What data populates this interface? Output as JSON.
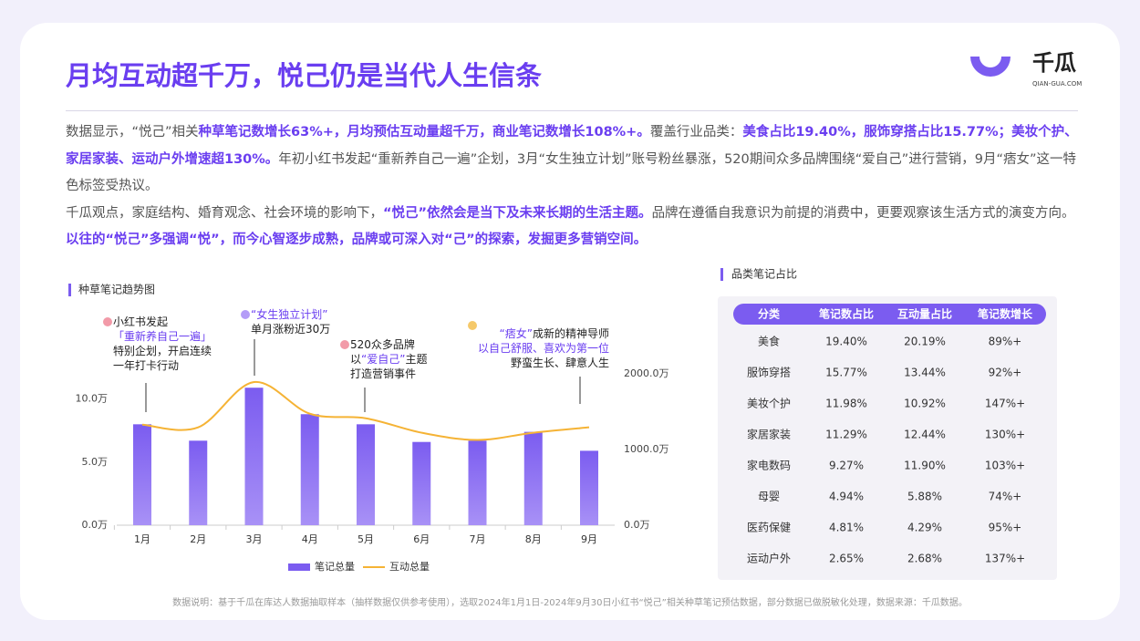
{
  "header": {
    "title": "月均互动超千万，悦己仍是当代人生信条",
    "logo": {
      "name": "千瓜",
      "site": "QIAN-GUA.COM"
    }
  },
  "paragraphs": [
    [
      {
        "text": "数据显示，“悦己”相关",
        "strong": false
      },
      {
        "text": "种草笔记数增长63%+，月均预估互动量超千万，商业笔记数增长108%+。",
        "strong": true
      },
      {
        "text": "覆盖行业品类：",
        "strong": false
      },
      {
        "text": "美食占比19.40%，服饰穿搭占比15.77%；美妆个护、家居家装、运动户外增速超130%。",
        "strong": true
      },
      {
        "text": "年初小红书发起“重新养自己一遍”企划，3月“女生独立计划”账号粉丝暴涨，520期间众多品牌围绕“爱自己”进行营销，9月“痞女”这一特色标签受热议。",
        "strong": false
      }
    ],
    [
      {
        "text": "千瓜观点，家庭结构、婚育观念、社会环境的影响下，",
        "strong": false
      },
      {
        "text": "“悦己”依然会是当下及未来长期的生活主题。",
        "strong": true
      },
      {
        "text": "品牌在遵循自我意识为前提的消费中，更要观察该生活方式的演变方向。",
        "strong": false
      },
      {
        "text": "以往的“悦己”多强调“悦”，而今心智逐步成熟，品牌或可深入对“己”的探索，发掘更多营销空间。",
        "strong": true
      }
    ]
  ],
  "chart_data": {
    "type": "combo",
    "title": "种草笔记趋势图",
    "categories": [
      "1月",
      "2月",
      "3月",
      "4月",
      "5月",
      "6月",
      "7月",
      "8月",
      "9月"
    ],
    "series": [
      {
        "name": "笔记总量",
        "type": "bar",
        "color": "#7b5cf0",
        "values": [
          8.0,
          6.7,
          10.9,
          8.8,
          8.0,
          6.6,
          6.7,
          7.4,
          5.9
        ]
      },
      {
        "name": "互动总量",
        "type": "line",
        "color": "#f5b335",
        "axis": "y2",
        "values": [
          1329,
          1293,
          1892,
          1473,
          1413,
          1222,
          1126,
          1222,
          1293
        ]
      }
    ],
    "ylim": [
      0,
      12
    ],
    "yticks": [
      {
        "value": 0,
        "label": "0.0万"
      },
      {
        "value": 5,
        "label": "5.0万"
      },
      {
        "value": 10,
        "label": "10.0万"
      }
    ],
    "y2lim": [
      0,
      2000
    ],
    "y2ticks": [
      {
        "value": 0,
        "label": "0.0万"
      },
      {
        "value": 1000,
        "label": "1000.0万"
      },
      {
        "value": 2000,
        "label": "2000.0万"
      }
    ],
    "annotations": [
      [
        [
          {
            "text": "小红书发起",
            "accent": false
          }
        ],
        [
          {
            "text": "「重新养自己一遍」",
            "accent": true
          }
        ],
        [
          {
            "text": "特别企划，开启连续",
            "accent": false
          }
        ],
        [
          {
            "text": "一年打卡行动",
            "accent": false
          }
        ]
      ],
      [
        [
          {
            "text": "“女生独立计划”",
            "accent": true
          }
        ],
        [
          {
            "text": "单月涨粉近30万",
            "accent": false
          }
        ]
      ],
      [
        [
          {
            "text": "520众多品牌",
            "accent": false
          }
        ],
        [
          {
            "text": "以",
            "accent": false
          },
          {
            "text": "“爱自己”",
            "accent": true
          },
          {
            "text": "主题",
            "accent": false
          }
        ],
        [
          {
            "text": "打造营销事件",
            "accent": false
          }
        ]
      ],
      [
        [
          {
            "text": "“痞女”",
            "accent": true
          },
          {
            "text": "成新的精神导师",
            "accent": false
          }
        ],
        [
          {
            "text": "以自己舒服、喜欢为第一位",
            "accent": true
          }
        ],
        [
          {
            "text": "野蛮生长、肆意人生",
            "accent": false
          }
        ]
      ]
    ],
    "legend": "bottom"
  },
  "table": {
    "title": "品类笔记占比",
    "columns": [
      "分类",
      "笔记数占比",
      "互动量占比",
      "笔记数增长"
    ],
    "rows": [
      [
        "美食",
        "19.40%",
        "20.19%",
        "89%+"
      ],
      [
        "服饰穿搭",
        "15.77%",
        "13.44%",
        "92%+"
      ],
      [
        "美妆个护",
        "11.98%",
        "10.92%",
        "147%+"
      ],
      [
        "家居家装",
        "11.29%",
        "12.44%",
        "130%+"
      ],
      [
        "家电数码",
        "9.27%",
        "11.90%",
        "103%+"
      ],
      [
        "母婴",
        "4.94%",
        "5.88%",
        "74%+"
      ],
      [
        "医药保健",
        "4.81%",
        "4.29%",
        "95%+"
      ],
      [
        "运动户外",
        "2.65%",
        "2.68%",
        "137%+"
      ]
    ]
  },
  "footnote": "数据说明：基于千瓜在库达人数据抽取样本（抽样数据仅供参考使用），选取2024年1月1日-2024年9月30日小红书“悦己”相关种草笔记预估数据，部分数据已做脱敏化处理，数据来源：千瓜数据。"
}
